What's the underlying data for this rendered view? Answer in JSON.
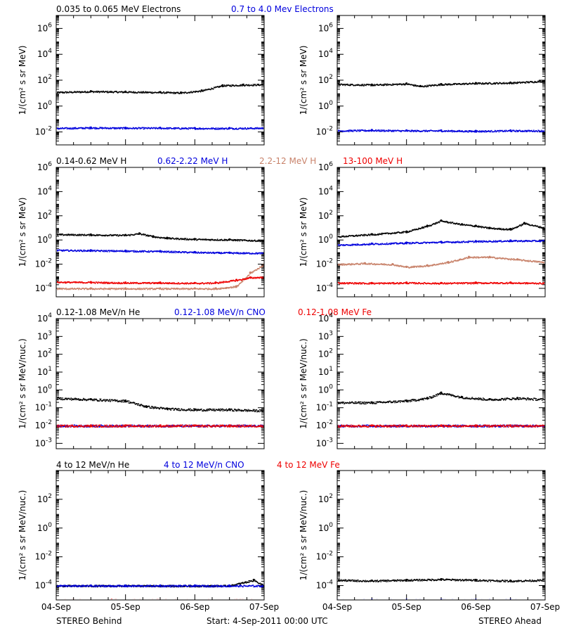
{
  "footer": {
    "left": "STEREO Behind",
    "center": "Start:  4-Sep-2011 00:00 UTC",
    "right": "STEREO Ahead"
  },
  "x_ticks": [
    "04-Sep",
    "05-Sep",
    "06-Sep",
    "07-Sep"
  ],
  "colors": {
    "black": "#000000",
    "blue": "#0000dd",
    "tan": "#c8826a",
    "red": "#ee0000"
  },
  "chart_data": [
    {
      "type": "scatter",
      "panel": "row1-behind",
      "ylabel": "1/(cm² s sr MeV)",
      "yscale": "log",
      "ylim": [
        0.001,
        10000000
      ],
      "ytick_exp": [
        -2,
        0,
        2,
        4,
        6
      ],
      "xlabel": "",
      "xlim": [
        0,
        3
      ],
      "legend": "top-left",
      "series": [
        {
          "name": "0.035 to 0.065 MeV Electrons",
          "color": "black",
          "x": [
            0,
            0.5,
            1,
            1.5,
            1.8,
            2.1,
            2.4,
            2.7,
            3
          ],
          "y": [
            12,
            14,
            13,
            12,
            11,
            16,
            40,
            45,
            48
          ]
        },
        {
          "name": "0.7 to 4.0 Mev Electrons",
          "color": "blue",
          "x": [
            0,
            0.5,
            1,
            1.5,
            2,
            2.5,
            3
          ],
          "y": [
            0.02,
            0.022,
            0.021,
            0.021,
            0.02,
            0.02,
            0.021
          ]
        }
      ]
    },
    {
      "type": "scatter",
      "panel": "row1-ahead",
      "ylabel": "1/(cm² s sr MeV)",
      "yscale": "log",
      "ylim": [
        0.001,
        10000000
      ],
      "ytick_exp": [
        -2,
        0,
        2,
        4,
        6
      ],
      "xlabel": "",
      "xlim": [
        0,
        3
      ],
      "series": [
        {
          "name": "",
          "color": "black",
          "x": [
            0,
            0.5,
            1,
            1.2,
            1.5,
            2,
            2.5,
            3
          ],
          "y": [
            50,
            45,
            55,
            35,
            50,
            60,
            65,
            90
          ]
        },
        {
          "name": "",
          "color": "blue",
          "x": [
            0,
            0.5,
            1,
            1.5,
            2,
            2.5,
            3
          ],
          "y": [
            0.013,
            0.014,
            0.013,
            0.013,
            0.012,
            0.013,
            0.013
          ]
        }
      ]
    },
    {
      "type": "scatter",
      "panel": "row2-behind",
      "ylabel": "1/(cm² s sr MeV)",
      "yscale": "log",
      "ylim": [
        2e-05,
        1000000
      ],
      "ytick_exp": [
        -4,
        -2,
        0,
        2,
        4,
        6
      ],
      "xlabel": "",
      "xlim": [
        0,
        3
      ],
      "legend": "top-left",
      "series": [
        {
          "name": "0.14-0.62 MeV H",
          "color": "black",
          "x": [
            0,
            0.5,
            1,
            1.2,
            1.4,
            1.6,
            2,
            2.5,
            3
          ],
          "y": [
            3,
            2.8,
            2.6,
            3.5,
            2,
            1.5,
            1.2,
            1.1,
            0.9
          ]
        },
        {
          "name": "0.62-2.22 MeV H",
          "color": "blue",
          "x": [
            0,
            0.5,
            1,
            1.5,
            2,
            2.5,
            3
          ],
          "y": [
            0.15,
            0.14,
            0.13,
            0.12,
            0.1,
            0.09,
            0.085
          ]
        },
        {
          "name": "2.2-12 MeV H",
          "color": "tan",
          "x": [
            0,
            0.5,
            1,
            1.5,
            2,
            2.3,
            2.6,
            2.8,
            3
          ],
          "y": [
            0.0001,
            0.0001,
            0.0001,
            0.0001,
            0.0001,
            0.0001,
            0.00015,
            0.002,
            0.01
          ]
        },
        {
          "name": "13-100 MeV H",
          "color": "red",
          "x": [
            0,
            0.5,
            1,
            1.5,
            2,
            2.3,
            2.6,
            2.8,
            3
          ],
          "y": [
            0.00035,
            0.00033,
            0.0003,
            0.0003,
            0.00028,
            0.0003,
            0.0005,
            0.0008,
            0.0009
          ]
        }
      ]
    },
    {
      "type": "scatter",
      "panel": "row2-ahead",
      "ylabel": "1/(cm² s sr MeV)",
      "yscale": "log",
      "ylim": [
        2e-05,
        1000000
      ],
      "ytick_exp": [
        -4,
        -2,
        0,
        2,
        4,
        6
      ],
      "xlabel": "",
      "xlim": [
        0,
        3
      ],
      "series": [
        {
          "name": "",
          "color": "black",
          "x": [
            0,
            0.5,
            1,
            1.3,
            1.5,
            1.8,
            2,
            2.2,
            2.5,
            2.7,
            3
          ],
          "y": [
            2,
            3,
            5,
            15,
            40,
            20,
            15,
            10,
            8,
            25,
            10
          ]
        },
        {
          "name": "",
          "color": "blue",
          "x": [
            0,
            0.5,
            1,
            1.5,
            2,
            2.5,
            3
          ],
          "y": [
            0.4,
            0.5,
            0.6,
            0.7,
            0.8,
            0.9,
            0.9
          ]
        },
        {
          "name": "",
          "color": "tan",
          "x": [
            0,
            0.4,
            0.8,
            1,
            1.3,
            1.6,
            1.9,
            2.2,
            2.6,
            3
          ],
          "y": [
            0.01,
            0.012,
            0.01,
            0.006,
            0.008,
            0.015,
            0.04,
            0.04,
            0.025,
            0.015
          ]
        },
        {
          "name": "",
          "color": "red",
          "x": [
            0,
            0.5,
            1,
            1.5,
            2,
            2.5,
            3
          ],
          "y": [
            0.0003,
            0.00028,
            0.0003,
            0.00028,
            0.0003,
            0.0003,
            0.00028
          ]
        }
      ]
    },
    {
      "type": "scatter",
      "panel": "row3-behind",
      "ylabel": "1/(cm² s sr MeV/nuc.)",
      "yscale": "log",
      "ylim": [
        0.0005,
        10000
      ],
      "ytick_exp": [
        -3,
        -2,
        -1,
        0,
        1,
        2,
        3,
        4
      ],
      "xlabel": "",
      "xlim": [
        0,
        3
      ],
      "legend": "top-left",
      "series": [
        {
          "name": "0.12-1.08 MeV/n He",
          "color": "black",
          "x": [
            0,
            0.5,
            1,
            1.3,
            1.6,
            2,
            2.5,
            3
          ],
          "y": [
            0.35,
            0.3,
            0.25,
            0.12,
            0.09,
            0.08,
            0.08,
            0.07
          ]
        },
        {
          "name": "0.12-1.08 MeV/n CNO",
          "color": "blue",
          "x": [
            0,
            0.5,
            1,
            1.5,
            2,
            2.5,
            3
          ],
          "y": [
            0.01,
            0.01,
            0.01,
            0.01,
            0.01,
            0.01,
            0.01
          ]
        },
        {
          "name": "0.12-1.08 MeV Fe",
          "color": "red",
          "x": [
            0,
            0.5,
            1,
            1.5,
            2,
            2.5,
            3
          ],
          "y": [
            0.01,
            0.01,
            0.01,
            0.01,
            0.01,
            0.01,
            0.01
          ]
        }
      ]
    },
    {
      "type": "scatter",
      "panel": "row3-ahead",
      "ylabel": "1/(cm² s sr MeV/nuc.)",
      "yscale": "log",
      "ylim": [
        0.0005,
        10000
      ],
      "ytick_exp": [
        -3,
        -2,
        -1,
        0,
        1,
        2,
        3,
        4
      ],
      "xlabel": "",
      "xlim": [
        0,
        3
      ],
      "series": [
        {
          "name": "",
          "color": "black",
          "x": [
            0,
            0.5,
            1,
            1.3,
            1.5,
            1.8,
            2.2,
            2.6,
            3
          ],
          "y": [
            0.2,
            0.2,
            0.25,
            0.35,
            0.7,
            0.4,
            0.3,
            0.35,
            0.3
          ]
        },
        {
          "name": "",
          "color": "blue",
          "x": [
            0,
            0.5,
            1,
            1.5,
            2,
            2.5,
            3
          ],
          "y": [
            0.01,
            0.01,
            0.01,
            0.01,
            0.01,
            0.01,
            0.01
          ]
        },
        {
          "name": "",
          "color": "red",
          "x": [
            0,
            0.5,
            1,
            1.5,
            2,
            2.5,
            3
          ],
          "y": [
            0.01,
            0.01,
            0.01,
            0.01,
            0.01,
            0.01,
            0.01
          ]
        }
      ]
    },
    {
      "type": "scatter",
      "panel": "row4-behind",
      "ylabel": "1/(cm² s sr MeV/nuc.)",
      "yscale": "log",
      "ylim": [
        1e-05,
        10000
      ],
      "ytick_exp": [
        -4,
        -2,
        0,
        2
      ],
      "xlabel": "",
      "xlim": [
        0,
        3
      ],
      "legend": "top-left",
      "series": [
        {
          "name": "4 to 12 MeV/n He",
          "color": "black",
          "x": [
            0,
            0.5,
            1,
            1.5,
            2,
            2.5,
            2.85,
            3
          ],
          "y": [
            0.0001,
            0.0001,
            0.0001,
            0.0001,
            0.0001,
            0.0001,
            0.00025,
            0.0001
          ]
        },
        {
          "name": "4 to 12 MeV/n CNO",
          "color": "blue",
          "x": [
            0,
            0.5,
            1,
            1.5,
            2,
            2.5,
            3
          ],
          "y": [
            0.0001,
            0.0001,
            0.0001,
            0.0001,
            0.0001,
            0.0001,
            0.0001
          ]
        },
        {
          "name": "4 to 12 MeV Fe",
          "color": "red",
          "x": [
            0.8
          ],
          "y": [
            1e-05
          ]
        }
      ]
    },
    {
      "type": "scatter",
      "panel": "row4-ahead",
      "ylabel": "1/(cm² s sr MeV/nuc.)",
      "yscale": "log",
      "ylim": [
        1e-05,
        10000
      ],
      "ytick_exp": [
        -4,
        -2,
        0,
        2
      ],
      "xlabel": "",
      "xlim": [
        0,
        3
      ],
      "series": [
        {
          "name": "",
          "color": "black",
          "x": [
            0,
            0.5,
            1,
            1.5,
            2,
            2.5,
            3
          ],
          "y": [
            0.00025,
            0.00022,
            0.00025,
            0.00028,
            0.00025,
            0.00022,
            0.00025
          ]
        },
        {
          "name": "",
          "color": "blue",
          "x": [
            0,
            0.5,
            1,
            1.5,
            2,
            2.5,
            3
          ],
          "y": [
            1e-05,
            1e-05,
            1e-05,
            1e-05,
            1e-05,
            1e-05,
            1e-05
          ]
        }
      ]
    }
  ]
}
